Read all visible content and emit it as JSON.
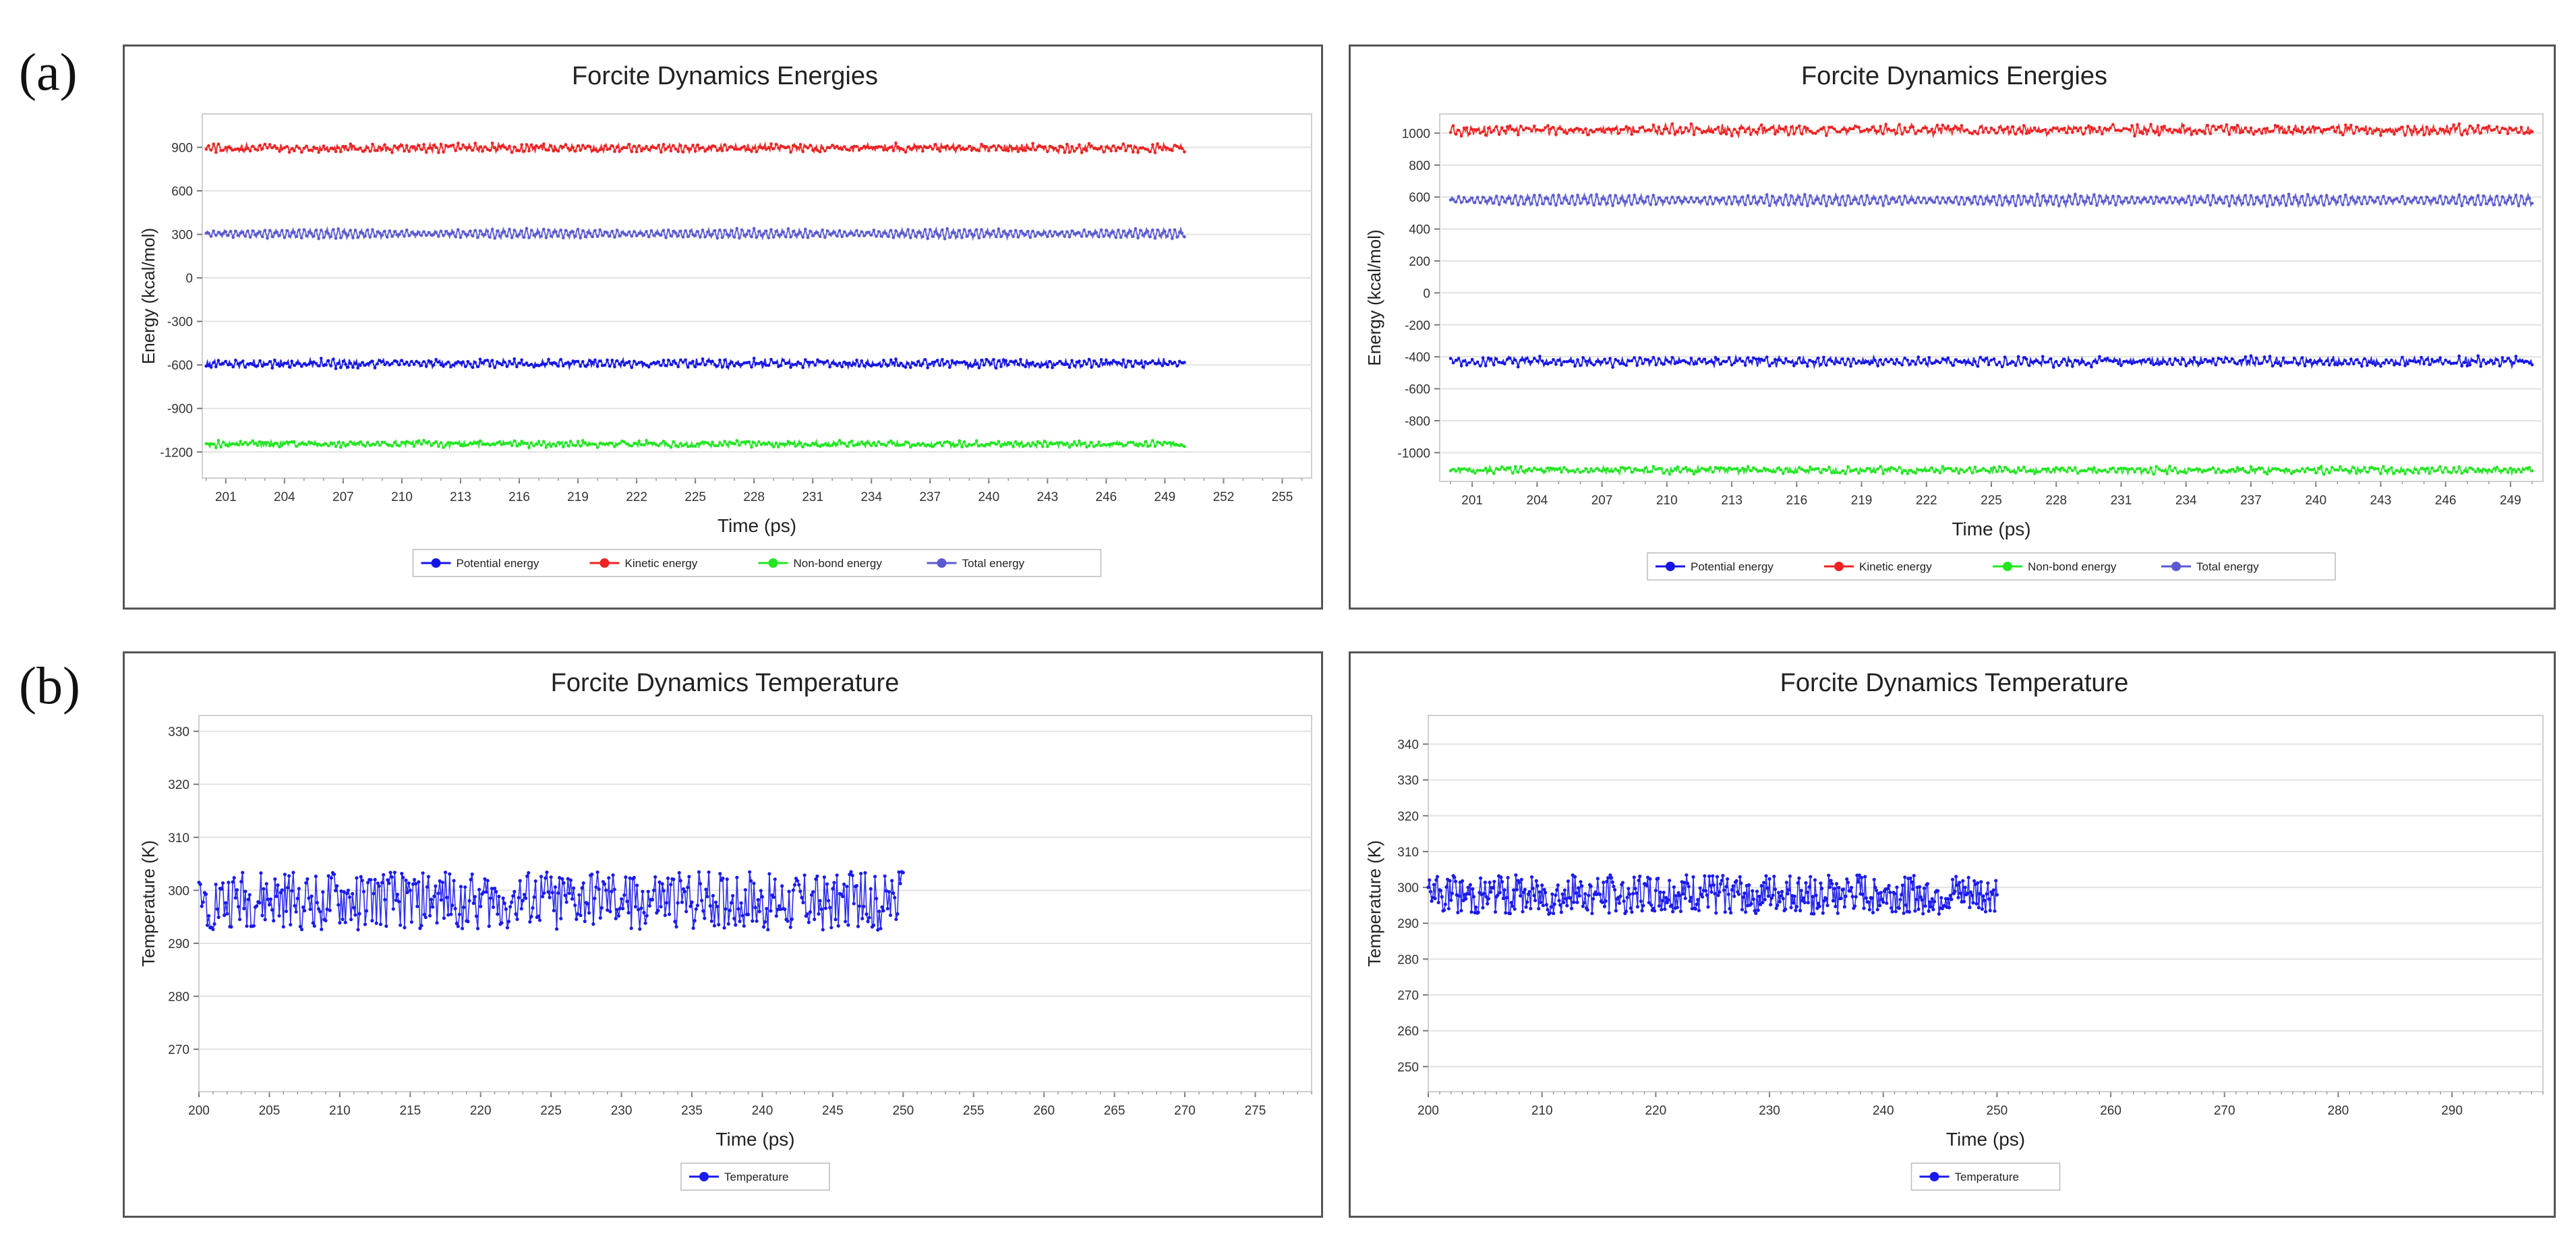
{
  "panel_labels": [
    "(a)",
    "(b)"
  ],
  "chart_data": [
    {
      "type": "line",
      "title": "Forcite Dynamics Energies",
      "xlabel": "Time (ps)",
      "ylabel": "Energy (kcal/mol)",
      "xlim": [
        199.8,
        256.5
      ],
      "ylim": [
        -1380,
        1130
      ],
      "xticks": [
        201,
        204,
        207,
        210,
        213,
        216,
        219,
        222,
        225,
        228,
        231,
        234,
        237,
        240,
        243,
        246,
        249,
        252,
        255
      ],
      "yticks": [
        -1200,
        -900,
        -600,
        -300,
        0,
        300,
        600,
        900
      ],
      "grid": true,
      "legend": "bottom",
      "x_range": [
        200,
        250
      ],
      "series": [
        {
          "name": "Potential energy",
          "color": "#1414e6",
          "mean": -590,
          "noise": 22,
          "osc": 14
        },
        {
          "name": "Kinetic energy",
          "color": "#ee2222",
          "mean": 895,
          "noise": 22,
          "osc": 12
        },
        {
          "name": "Non-bond energy",
          "color": "#22e622",
          "mean": -1145,
          "noise": 18,
          "osc": 8
        },
        {
          "name": "Total energy",
          "color": "#5a5ad2",
          "mean": 305,
          "noise": 6,
          "osc": 28
        }
      ]
    },
    {
      "type": "line",
      "title": "Forcite Dynamics Energies",
      "xlabel": "Time (ps)",
      "ylabel": "Energy (kcal/mol)",
      "xlim": [
        199.5,
        250.5
      ],
      "ylim": [
        -1180,
        1120
      ],
      "xticks": [
        201,
        204,
        207,
        210,
        213,
        216,
        219,
        222,
        225,
        228,
        231,
        234,
        237,
        240,
        243,
        246,
        249
      ],
      "yticks": [
        -1000,
        -800,
        -600,
        -400,
        -200,
        0,
        200,
        400,
        600,
        800,
        1000
      ],
      "grid": true,
      "legend": "bottom",
      "x_range": [
        200,
        250
      ],
      "series": [
        {
          "name": "Potential energy",
          "color": "#1414e6",
          "mean": -430,
          "noise": 22,
          "osc": 14
        },
        {
          "name": "Kinetic energy",
          "color": "#ee2222",
          "mean": 1020,
          "noise": 25,
          "osc": 14
        },
        {
          "name": "Non-bond energy",
          "color": "#22e622",
          "mean": -1110,
          "noise": 18,
          "osc": 8
        },
        {
          "name": "Total energy",
          "color": "#5a5ad2",
          "mean": 580,
          "noise": 6,
          "osc": 30
        }
      ]
    },
    {
      "type": "line",
      "title": "Forcite Dynamics Temperature",
      "xlabel": "Time (ps)",
      "ylabel": "Temperature (K)",
      "xlim": [
        200,
        279
      ],
      "ylim": [
        262,
        333
      ],
      "xticks": [
        200,
        205,
        210,
        215,
        220,
        225,
        230,
        235,
        240,
        245,
        250,
        255,
        260,
        265,
        270,
        275
      ],
      "yticks": [
        270,
        280,
        290,
        300,
        310,
        320,
        330
      ],
      "grid": true,
      "legend": "bottom",
      "x_range": [
        200,
        250
      ],
      "series": [
        {
          "name": "Temperature",
          "color": "#1a1aee",
          "mean": 298,
          "noise": 5.5,
          "osc": 0
        }
      ]
    },
    {
      "type": "line",
      "title": "Forcite Dynamics Temperature",
      "xlabel": "Time (ps)",
      "ylabel": "Temperature (K)",
      "xlim": [
        200,
        298
      ],
      "ylim": [
        243,
        348
      ],
      "xticks": [
        200,
        210,
        220,
        230,
        240,
        250,
        260,
        270,
        280,
        290
      ],
      "yticks": [
        250,
        260,
        270,
        280,
        290,
        300,
        310,
        320,
        330,
        340
      ],
      "grid": true,
      "legend": "bottom",
      "x_range": [
        200,
        250
      ],
      "series": [
        {
          "name": "Temperature",
          "color": "#1a1aee",
          "mean": 298,
          "noise": 5.5,
          "osc": 0
        }
      ]
    }
  ]
}
